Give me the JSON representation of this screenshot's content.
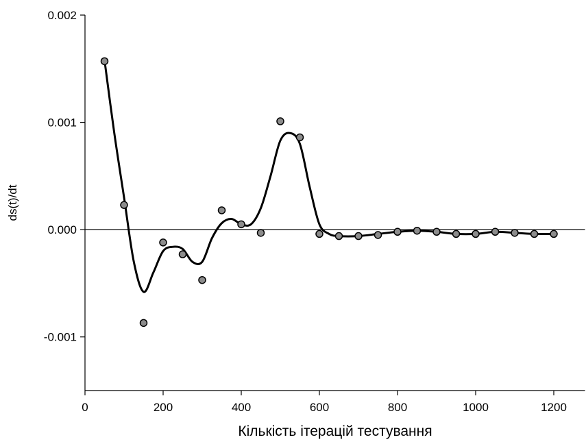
{
  "chart_data": {
    "type": "scatter",
    "x_label": "Кількість ітерацій тестування",
    "y_label": "ds(t)/dt",
    "xlim": [
      0,
      1280
    ],
    "ylim": [
      -0.0015,
      0.002
    ],
    "xticks": [
      0,
      200,
      400,
      600,
      800,
      1000,
      1200
    ],
    "yticks": [
      -0.001,
      {
        "value": 0,
        "label": "0.000"
      },
      0.001,
      0.002
    ],
    "hline": 0,
    "series": [
      {
        "mode": "markers",
        "color": "#8c8c8c",
        "x": [
          50,
          100,
          150,
          200,
          250,
          300,
          350,
          400,
          450,
          500,
          550,
          600,
          650,
          700,
          750,
          800,
          850,
          900,
          950,
          1000,
          1050,
          1100,
          1150,
          1200
        ],
        "values": [
          0.00157,
          0.00023,
          -0.00087,
          -0.00012,
          -0.00023,
          -0.00047,
          0.00018,
          5e-05,
          -3e-05,
          0.00101,
          0.00086,
          -4e-05,
          -6e-05,
          -6e-05,
          -5e-05,
          -2e-05,
          -1e-05,
          -2e-05,
          -4e-05,
          -4e-05,
          -2e-05,
          -3e-05,
          -4e-05,
          -4e-05
        ]
      },
      {
        "mode": "line",
        "color": "#000000",
        "x": [
          50,
          75,
          100,
          125,
          150,
          175,
          200,
          225,
          250,
          275,
          300,
          325,
          350,
          375,
          400,
          425,
          450,
          475,
          500,
          525,
          550,
          575,
          600,
          625,
          650,
          700,
          750,
          800,
          850,
          900,
          950,
          1000,
          1050,
          1100,
          1150,
          1200
        ],
        "values": [
          0.00158,
          0.0009,
          0.0003,
          -0.0003,
          -0.00058,
          -0.0004,
          -0.0002,
          -0.00016,
          -0.00018,
          -0.0003,
          -0.0003,
          -8e-05,
          6e-05,
          0.0001,
          5e-05,
          5e-05,
          0.0002,
          0.0005,
          0.00083,
          0.0009,
          0.0008,
          0.0004,
          5e-05,
          -4e-05,
          -6e-05,
          -6e-05,
          -4e-05,
          -2e-05,
          -1e-05,
          -2e-05,
          -4e-05,
          -4e-05,
          -2e-05,
          -3e-05,
          -4e-05,
          -4e-05
        ]
      }
    ]
  }
}
